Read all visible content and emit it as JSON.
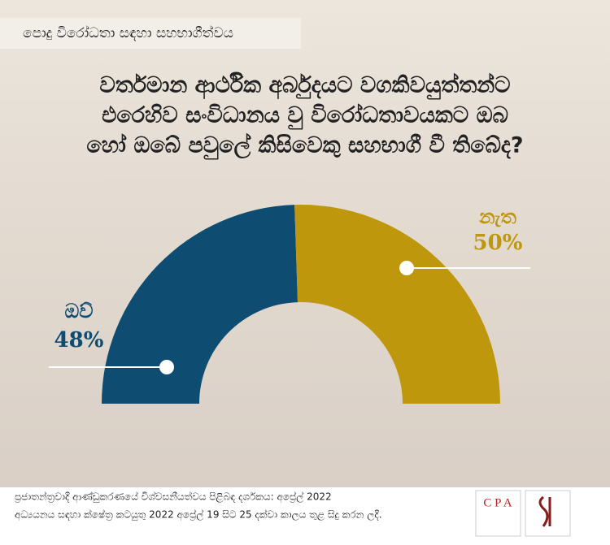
{
  "header": {
    "title": "පොදු විරෝධතා සඳහා සහභාගීත්වය"
  },
  "chart_data": {
    "type": "half-donut",
    "title": [
      "වර්තමාන ආර්ථික අර්බුදයට වගකිවයුත්තන්ට",
      "එරෙහිව සංවිධානය වු විරෝධතාවයකට ඔබ",
      "හෝ ඔබේ පවුලේ කිසිවෙකු සහභාගී වී තිබේද?"
    ],
    "categories": [
      "ඔව්",
      "නැත"
    ],
    "values": [
      48,
      50
    ],
    "value_labels": [
      "48%",
      "50%"
    ],
    "colors": [
      "#0f4c71",
      "#bf970d"
    ]
  },
  "footer": {
    "lines": [
      "ප්‍රජාතන්ත්‍රවාදී ආණ්ඩුකරණයේ විශ්වසනීයත්වය පිළිබඳ දර්ශකය: අප්‍රේල් 2022",
      "අධ්‍යයනය සඳහා ක්ෂේත්‍ර කටයුතු 2022 අප්‍රේල් 19 සිට 25 දක්වා කාලය තුළ සිදු කරන ලදී."
    ],
    "logo": "C P A"
  }
}
